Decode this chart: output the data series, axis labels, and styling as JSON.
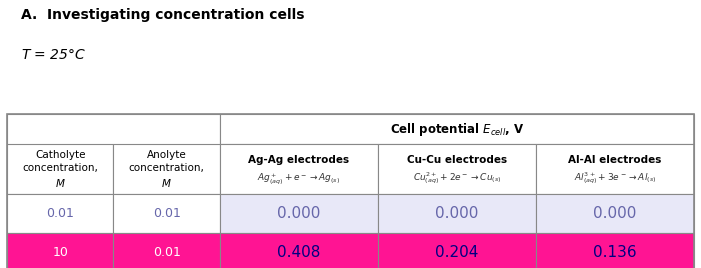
{
  "title": "A.  Investigating concentration cells",
  "subtitle": "$T$ = 25°C",
  "col_header_top": "Cell potential $\\boldsymbol{E_{cell}}$, V",
  "col_headers": [
    "Catholyte\nconcentration,\n$\\boldsymbol{M}$",
    "Anolyte\nconcentration,\n$\\boldsymbol{M}$",
    "Ag-Ag electrodes\n$Ag^+_{(aq)} + e^- \\rightarrow Ag_{(s)}$",
    "Cu-Cu electrodes\n$Cu^{2+}_{(aq)} + 2e^- \\rightarrow Cu_{(s)}$",
    "Al-Al electrodes\n$Al^{3+}_{(aq)} + 3e^- \\rightarrow Al_{(s)}$"
  ],
  "rows": [
    [
      "0.01",
      "0.01",
      "0.000",
      "0.000",
      "0.000"
    ],
    [
      "10",
      "0.01",
      "0.408",
      "0.204",
      "0.136"
    ]
  ],
  "row_bg_colors": [
    "#ffffff",
    "#FF1493"
  ],
  "data_cell_bg_row0": "#e8e8f8",
  "data_cell_bg_row1": "#FF1493",
  "text_color_header": "#000000",
  "text_color_row0": "#6666aa",
  "text_color_row1_left": "#ffffff",
  "text_color_row1_right": "#000080",
  "table_border_color": "#888888",
  "header_bg": "#ffffff",
  "title_color": "#000000",
  "subtitle_color": "#000000"
}
